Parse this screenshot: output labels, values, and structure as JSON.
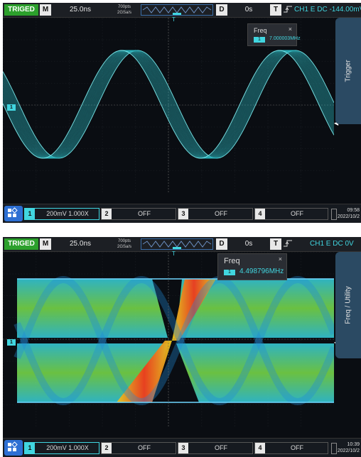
{
  "screens": [
    {
      "status": "TRIGED",
      "mode_label": "M",
      "timebase": "25.0ns",
      "memory_depth": "700pts",
      "sample_rate": "2GSa/s",
      "delay_label": "D",
      "delay_value": "0s",
      "trigger_label": "T",
      "trigger_info": "CH1 E DC -144.00mV",
      "side_tab": "Trigger",
      "measure": {
        "title": "Freq",
        "close": "×",
        "channel": "1",
        "value": "7.000003MHz"
      },
      "channels": [
        {
          "num": "1",
          "text": "200mV 1.000X"
        },
        {
          "num": "2",
          "text": "OFF"
        },
        {
          "num": "3",
          "text": "OFF"
        },
        {
          "num": "4",
          "text": "OFF"
        }
      ],
      "clock_time": "09:58",
      "clock_date": "2022/10/2",
      "marker_label": "1",
      "trigger_pos_marker": "T",
      "level_marker": "◀"
    },
    {
      "status": "TRIGED",
      "mode_label": "M",
      "timebase": "25.0ns",
      "memory_depth": "700pts",
      "sample_rate": "2GSa/s",
      "delay_label": "D",
      "delay_value": "0s",
      "trigger_label": "T",
      "trigger_info": "CH1 E DC 0V",
      "side_tab": "Freq / Utility",
      "measure": {
        "title": "Freq",
        "close": "×",
        "channel": "1",
        "value": "4.498796MHz"
      },
      "channels": [
        {
          "num": "1",
          "text": "200mV 1.000X"
        },
        {
          "num": "2",
          "text": "OFF"
        },
        {
          "num": "3",
          "text": "OFF"
        },
        {
          "num": "4",
          "text": "OFF"
        }
      ],
      "clock_time": "10:39",
      "clock_date": "2022/10/2",
      "marker_label": "1",
      "trigger_pos_marker": "T",
      "level_marker": "◀"
    }
  ],
  "colors": {
    "accent": "#41d6e0",
    "trig_status": "#2ca02c",
    "menu": "#2d6fd3"
  }
}
